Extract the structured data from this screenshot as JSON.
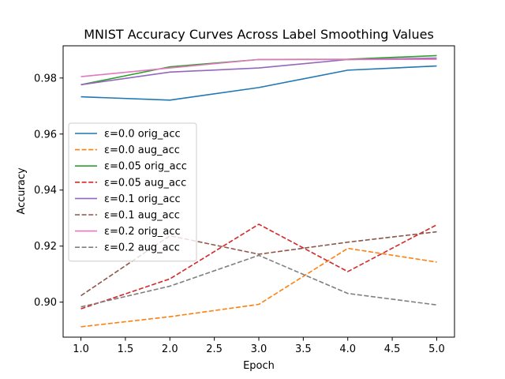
{
  "chart_data": {
    "type": "line",
    "title": "MNIST Accuracy Curves Across Label Smoothing Values",
    "xlabel": "Epoch",
    "ylabel": "Accuracy",
    "xlim": [
      0.8,
      5.2
    ],
    "ylim": [
      0.8875,
      0.9915
    ],
    "xticks": [
      1.0,
      1.5,
      2.0,
      2.5,
      3.0,
      3.5,
      4.0,
      4.5,
      5.0
    ],
    "xtick_labels": [
      "1.0",
      "1.5",
      "2.0",
      "2.5",
      "3.0",
      "3.5",
      "4.0",
      "4.5",
      "5.0"
    ],
    "yticks": [
      0.9,
      0.92,
      0.94,
      0.96,
      0.98
    ],
    "ytick_labels": [
      "0.90",
      "0.92",
      "0.94",
      "0.96",
      "0.98"
    ],
    "grid": false,
    "legend_position": "center-left",
    "x": [
      1,
      2,
      3,
      4,
      5
    ],
    "series": [
      {
        "name": "ε=0.0 orig_acc",
        "color": "#1f77b4",
        "style": "solid",
        "values": [
          0.9733,
          0.9721,
          0.9766,
          0.9828,
          0.9843
        ]
      },
      {
        "name": "ε=0.0 aug_acc",
        "color": "#ff7f0e",
        "style": "dashed",
        "values": [
          0.8912,
          0.8948,
          0.8992,
          0.9192,
          0.9143
        ]
      },
      {
        "name": "ε=0.05 orig_acc",
        "color": "#2ca02c",
        "style": "solid",
        "values": [
          0.9776,
          0.984,
          0.9866,
          0.9867,
          0.988
        ]
      },
      {
        "name": "ε=0.05 aug_acc",
        "color": "#d62728",
        "style": "dashed",
        "values": [
          0.8976,
          0.9083,
          0.9278,
          0.9109,
          0.9276
        ]
      },
      {
        "name": "ε=0.1 orig_acc",
        "color": "#9467bd",
        "style": "solid",
        "values": [
          0.9776,
          0.9821,
          0.9836,
          0.9866,
          0.9871
        ]
      },
      {
        "name": "ε=0.1 aug_acc",
        "color": "#8c564b",
        "style": "dashed",
        "values": [
          0.9023,
          0.9237,
          0.9171,
          0.9214,
          0.9251
        ]
      },
      {
        "name": "ε=0.2 orig_acc",
        "color": "#e377c2",
        "style": "solid",
        "values": [
          0.9805,
          0.9836,
          0.9866,
          0.9866,
          0.9867
        ]
      },
      {
        "name": "ε=0.2 aug_acc",
        "color": "#7f7f7f",
        "style": "dashed",
        "values": [
          0.8983,
          0.9057,
          0.9167,
          0.9031,
          0.899
        ]
      }
    ]
  }
}
